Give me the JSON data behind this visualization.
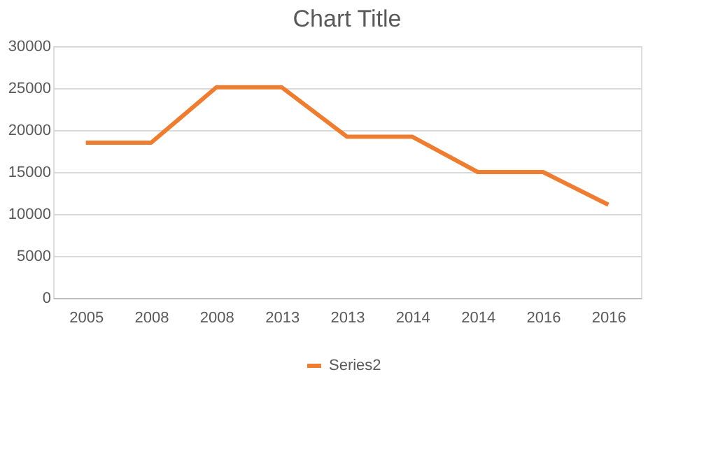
{
  "chart_data": {
    "type": "line",
    "title": "Chart Title",
    "categories": [
      "2005",
      "2008",
      "2008",
      "2013",
      "2013",
      "2014",
      "2014",
      "2016",
      "2016"
    ],
    "series": [
      {
        "name": "Series2",
        "color": "#ed7d31",
        "values": [
          18500,
          18500,
          25100,
          25100,
          19200,
          19200,
          15000,
          15000,
          11100
        ]
      }
    ],
    "ylim": [
      0,
      30000
    ],
    "yticks": [
      0,
      5000,
      10000,
      15000,
      20000,
      25000,
      30000
    ],
    "grid": "y",
    "legend": "bottom",
    "marker": "none",
    "line_style": "solid"
  }
}
